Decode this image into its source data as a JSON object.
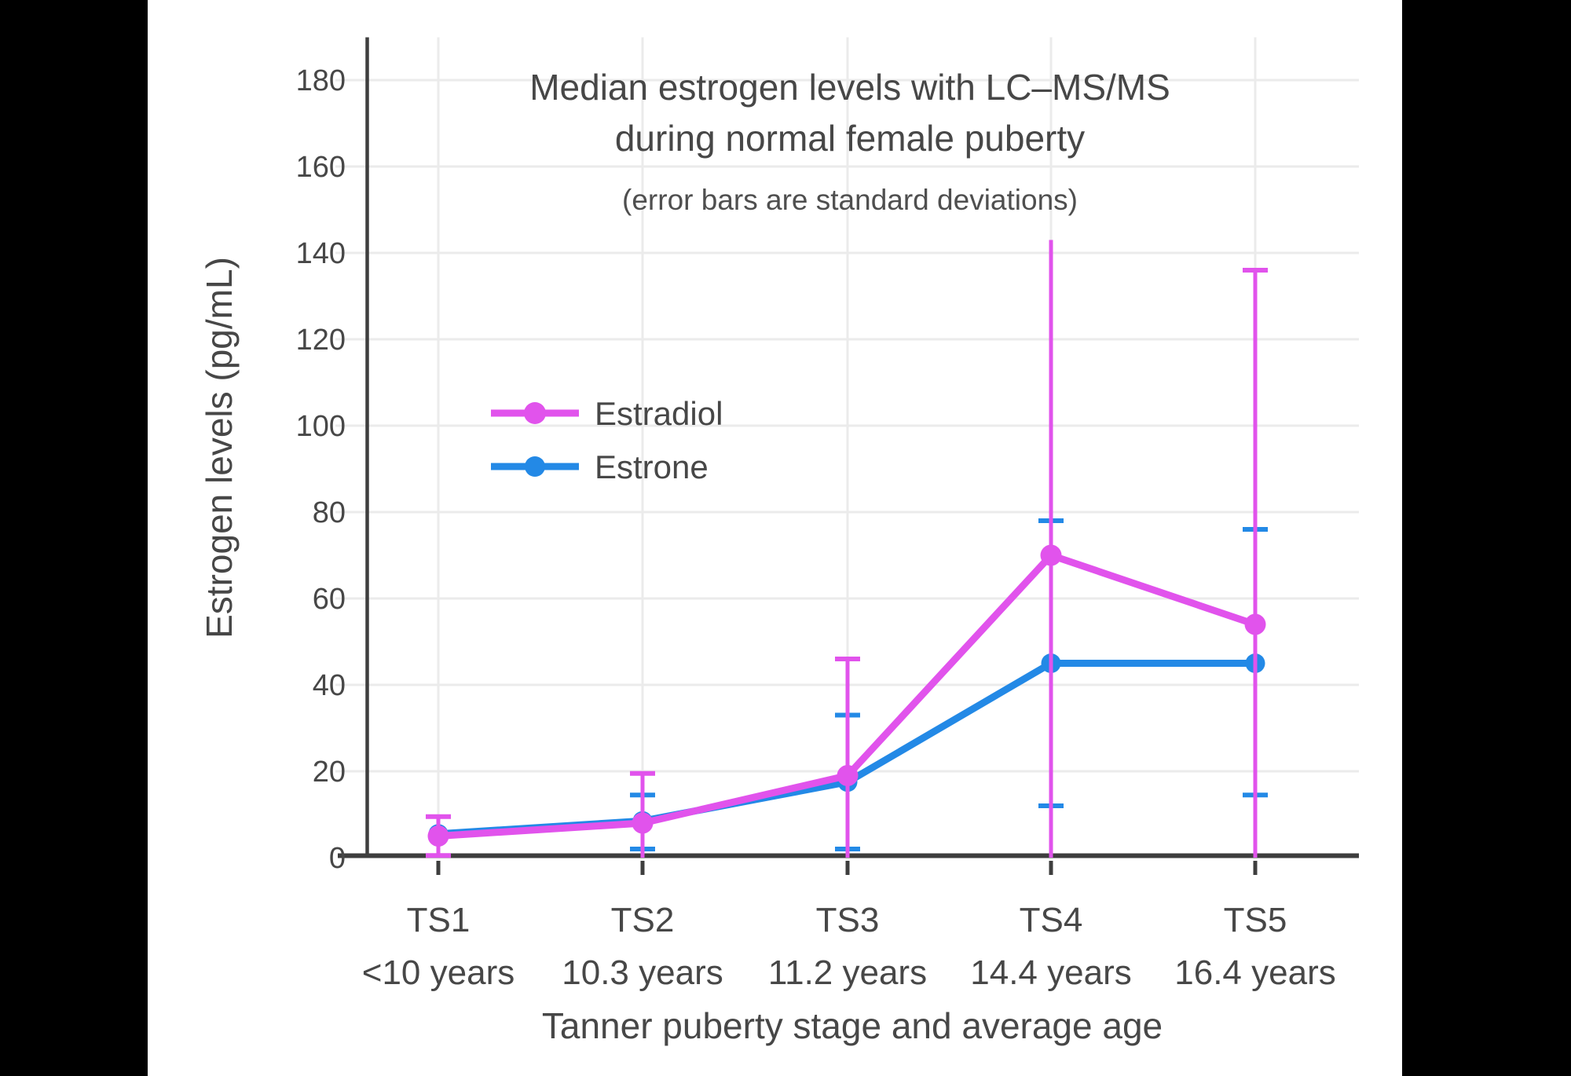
{
  "page": {
    "background": "#000000",
    "canvas_background": "#ffffff"
  },
  "colors": {
    "estradiol": "#E153EC",
    "estrone": "#2389E6",
    "axis": "#3E3E3E",
    "grid": "#EBEBEB",
    "text": "#474747"
  },
  "chart_data": {
    "type": "line",
    "title": "Median estrogen levels with LC–MS/MS",
    "title_line2": "during normal female puberty",
    "subtitle": "(error bars are standard deviations)",
    "xlabel": "Tanner puberty stage and average age",
    "ylabel": "Estrogen levels (pg/mL)",
    "ylim": [
      0,
      190
    ],
    "y_ticks": [
      0,
      20,
      40,
      60,
      80,
      100,
      120,
      140,
      160,
      180
    ],
    "grid": true,
    "legend_position": "inside-upper-left",
    "x_categories": [
      {
        "stage": "TS1",
        "age": "<10 years"
      },
      {
        "stage": "TS2",
        "age": "10.3 years"
      },
      {
        "stage": "TS3",
        "age": "11.2 years"
      },
      {
        "stage": "TS4",
        "age": "14.4 years"
      },
      {
        "stage": "TS5",
        "age": "16.4 years"
      }
    ],
    "series": [
      {
        "name": "Estradiol",
        "color": "#E153EC",
        "values": [
          5,
          8,
          19,
          70,
          54
        ],
        "err_high": [
          9.5,
          19.5,
          46,
          143,
          136
        ],
        "err_low": [
          0.5,
          0,
          0,
          0,
          0
        ],
        "cap_high": [
          true,
          true,
          true,
          false,
          true
        ],
        "cap_low": [
          true,
          false,
          false,
          false,
          false
        ]
      },
      {
        "name": "Estrone",
        "color": "#2389E6",
        "values": [
          5.5,
          8.5,
          17.5,
          45,
          45
        ],
        "err_high": [
          null,
          14.5,
          33,
          78,
          76
        ],
        "err_low": [
          null,
          2,
          2,
          12,
          14.5
        ],
        "cap_high": [
          false,
          true,
          true,
          true,
          true
        ],
        "cap_low": [
          false,
          true,
          true,
          true,
          true
        ]
      }
    ]
  }
}
